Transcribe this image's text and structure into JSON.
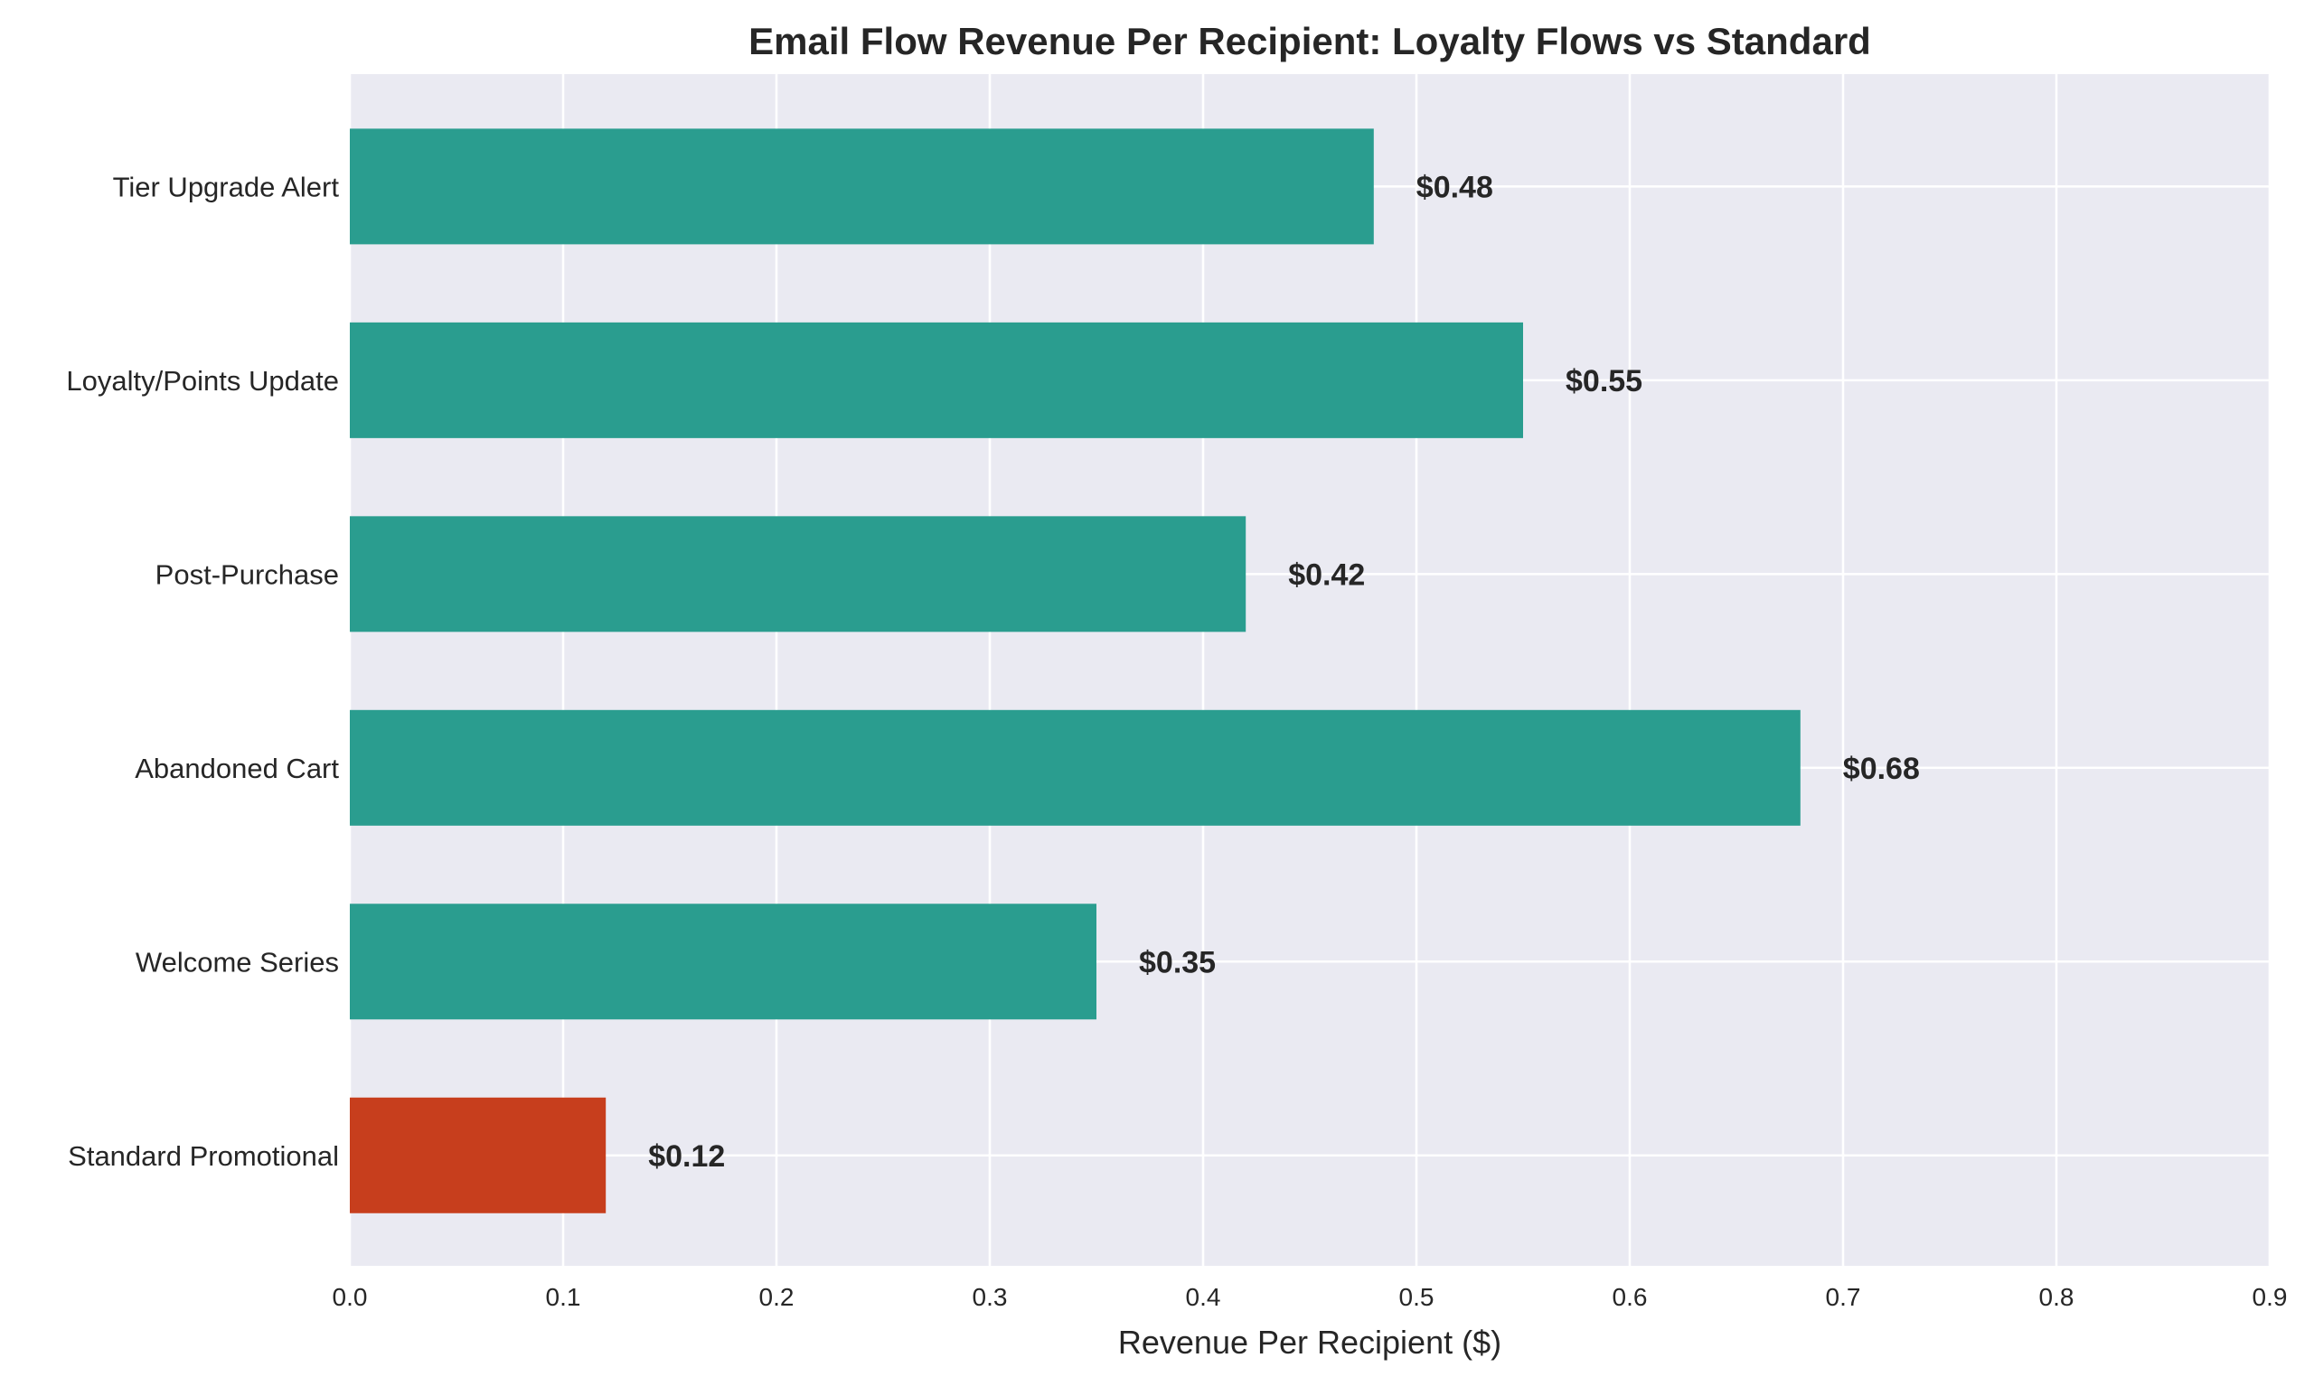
{
  "chart_data": {
    "type": "bar",
    "orientation": "horizontal",
    "title": "Email Flow Revenue Per Recipient: Loyalty Flows vs Standard",
    "xlabel": "Revenue Per Recipient ($)",
    "ylabel": "",
    "xlim": [
      0,
      0.9
    ],
    "xticks": [
      "0.0",
      "0.1",
      "0.2",
      "0.3",
      "0.4",
      "0.5",
      "0.6",
      "0.7",
      "0.8",
      "0.9"
    ],
    "grid": true,
    "categories": [
      "Standard Promotional",
      "Welcome Series",
      "Abandoned Cart",
      "Post-Purchase",
      "Loyalty/Points Update",
      "Tier Upgrade Alert"
    ],
    "values": [
      0.12,
      0.35,
      0.68,
      0.42,
      0.55,
      0.48
    ],
    "data_labels": [
      "$0.12",
      "$0.35",
      "$0.68",
      "$0.42",
      "$0.55",
      "$0.48"
    ],
    "colors": [
      "#c73e1d",
      "#2a9d8f",
      "#2a9d8f",
      "#2a9d8f",
      "#2a9d8f",
      "#2a9d8f"
    ],
    "background": "#eaeaf2"
  }
}
